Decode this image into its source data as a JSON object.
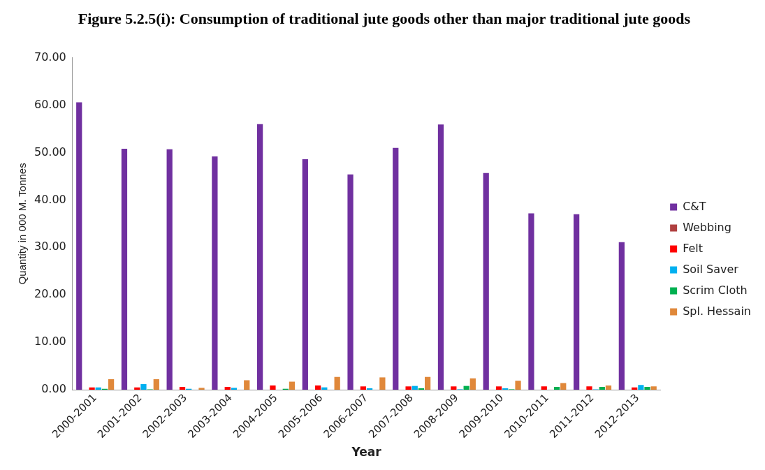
{
  "chart_data": {
    "type": "bar",
    "title": "Figure 5.2.5(i): Consumption of traditional jute goods other than major traditional jute goods",
    "xlabel": "Year",
    "ylabel": "Quantity in 000 M. Tonnes",
    "categories": [
      "2000-2001",
      "2001-2002",
      "2002-2003",
      "2003-2004",
      "2004-2005",
      "2005-2006",
      "2006-2007",
      "2007-2008",
      "2008-2009",
      "2009-2010",
      "2010-2011",
      "2011-2012",
      "2012-2013"
    ],
    "series": [
      {
        "name": "C&T",
        "color": "#7030a0",
        "values": [
          60.6,
          50.8,
          50.7,
          49.2,
          56.0,
          48.6,
          45.4,
          51.0,
          55.9,
          45.7,
          37.2,
          37.0,
          31.1
        ]
      },
      {
        "name": "Webbing",
        "color": "#b04040",
        "values": [
          0,
          0,
          0,
          0,
          0,
          0,
          0,
          0,
          0,
          0,
          0,
          0,
          0
        ]
      },
      {
        "name": "Felt",
        "color": "#ff0000",
        "values": [
          0.5,
          0.5,
          0.6,
          0.6,
          0.9,
          0.9,
          0.7,
          0.7,
          0.7,
          0.7,
          0.7,
          0.7,
          0.5
        ]
      },
      {
        "name": "Soil Saver",
        "color": "#00b0f0",
        "values": [
          0.5,
          1.2,
          0.2,
          0.4,
          0,
          0.5,
          0.3,
          0.8,
          0.1,
          0.3,
          0,
          0.1,
          1.0
        ]
      },
      {
        "name": "Scrim Cloth",
        "color": "#00b050",
        "values": [
          0.2,
          0.1,
          0,
          0,
          0.2,
          0,
          0,
          0.3,
          0.8,
          0.1,
          0.6,
          0.6,
          0.6
        ]
      },
      {
        "name": "Spl. Hessain",
        "color": "#e0883a",
        "values": [
          2.2,
          2.2,
          0.4,
          2.0,
          1.7,
          2.7,
          2.6,
          2.7,
          2.4,
          1.9,
          1.4,
          0.9,
          0.7
        ]
      }
    ],
    "ylim": [
      0,
      70
    ],
    "yticks": [
      {
        "value": 0,
        "label": "0.00"
      },
      {
        "value": 10,
        "label": "10.00"
      },
      {
        "value": 20,
        "label": "20.00"
      },
      {
        "value": 30,
        "label": "30.00"
      },
      {
        "value": 40,
        "label": "40.00"
      },
      {
        "value": 50,
        "label": "50.00"
      },
      {
        "value": 60,
        "label": "60.00"
      },
      {
        "value": 70,
        "label": "70.00"
      }
    ],
    "grid": false,
    "legend": "right"
  }
}
